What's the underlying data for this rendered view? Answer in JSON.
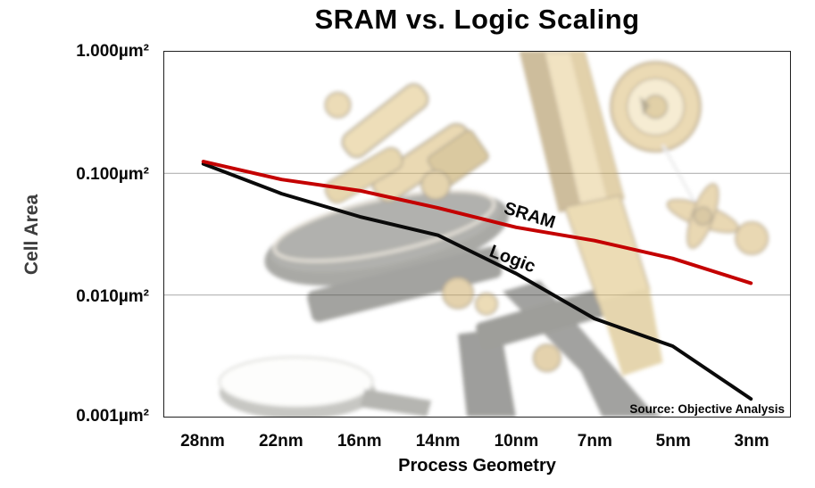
{
  "title": "SRAM vs. Logic Scaling",
  "y_axis": {
    "label": "Cell Area",
    "ticks": [
      "1.000µm²",
      "0.100µm²",
      "0.010µm²",
      "0.001µm²"
    ]
  },
  "x_axis": {
    "label": "Process Geometry"
  },
  "source_note": "Source: Objective Analysis",
  "colors": {
    "sram": "#c40000",
    "logic": "#0a0a0a",
    "grid": "#b3b3b3"
  },
  "background_image": "faded brass microscope photo",
  "chart_data": {
    "type": "line",
    "title": "SRAM vs. Logic Scaling",
    "xlabel": "Process Geometry",
    "ylabel": "Cell Area",
    "y_scale": "log",
    "ylim": [
      0.001,
      1.0
    ],
    "y_tick_values": [
      1.0,
      0.1,
      0.01,
      0.001
    ],
    "grid": "horizontal decade gridlines",
    "legend": "inline labels next to lines",
    "categories": [
      "28nm",
      "22nm",
      "16nm",
      "14nm",
      "10nm",
      "7nm",
      "5nm",
      "3nm"
    ],
    "series": [
      {
        "name": "SRAM",
        "color": "#c40000",
        "unit": "µm²",
        "values": [
          0.125,
          0.089,
          0.072,
          0.052,
          0.036,
          0.028,
          0.02,
          0.0125
        ]
      },
      {
        "name": "Logic",
        "color": "#0a0a0a",
        "unit": "µm²",
        "values": [
          0.12,
          0.068,
          0.044,
          0.031,
          0.015,
          0.0064,
          0.0038,
          0.0014
        ]
      }
    ]
  }
}
